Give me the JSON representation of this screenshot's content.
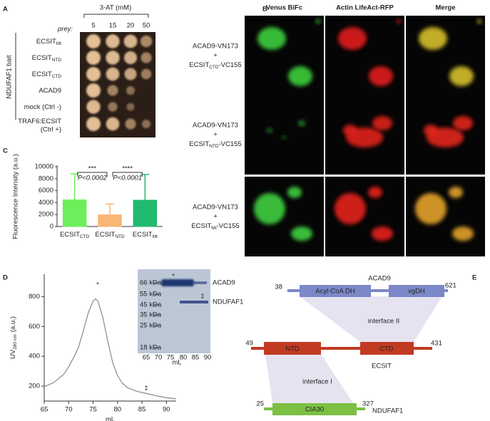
{
  "panel_labels": [
    "A",
    "B",
    "C",
    "D",
    "E"
  ],
  "panel_a": {
    "title": "3-AT (mM)",
    "concentrations": [
      "5",
      "15",
      "20",
      "50"
    ],
    "prey": "prey:",
    "bait": "NDUFAF1 bait",
    "rows": [
      {
        "name": "ECSIT",
        "sub": "Mt"
      },
      {
        "name": "ECSIT",
        "sub": "NTD"
      },
      {
        "name": "ECSIT",
        "sub": "CTD"
      },
      {
        "name": "ACAD9"
      },
      {
        "name": "mock (Ctrl -)"
      },
      {
        "name": "TRAF6:ECSIT",
        "line2": "(Ctrl +)"
      }
    ]
  },
  "panel_b": {
    "columns": [
      "Venus BiFc",
      "Actin LifeAct-RFP",
      "Merge"
    ],
    "rows": [
      {
        "line1": "ACAD9-VN173",
        "line2": "+",
        "name": "ECSIT",
        "sub": "CTD",
        "suffix": "-VC155"
      },
      {
        "line1": "ACAD9-VN173",
        "line2": "+",
        "name": "ECSIT",
        "sub": "NTD",
        "suffix": "-VC155"
      },
      {
        "line1": "ACAD9-VN173",
        "line2": "+",
        "name": "ECSIT",
        "sub": "Mt",
        "suffix": "-VC155"
      }
    ]
  },
  "chart_data": [
    {
      "type": "bar",
      "ylabel": "Fluorescence Intensity (a.u.)",
      "categories": [
        "ECSIT",
        "ECSIT",
        "ECSIT"
      ],
      "category_subscripts": [
        "CTD",
        "NTD",
        "Mt"
      ],
      "values": [
        4450,
        1950,
        4400
      ],
      "errors": [
        4350,
        1800,
        4300
      ],
      "colors": [
        "#6cef5a",
        "#f9b676",
        "#20b96f"
      ],
      "ylim": [
        0,
        10000
      ],
      "yticks": [
        0,
        2000,
        4000,
        6000,
        8000,
        10000
      ],
      "annotations": [
        {
          "stars": "***",
          "p": "P<0.0002"
        },
        {
          "stars": "****",
          "p": "P<0.0001"
        }
      ]
    },
    {
      "type": "line",
      "ylabel": {
        "text": "UV",
        "sub": "280 nm",
        "suffix": "(a.u.)"
      },
      "xlabel": "mL",
      "color": "#8a8a8a",
      "x": [
        65,
        67,
        69,
        70,
        71,
        72,
        73,
        74,
        75,
        75.5,
        76,
        77,
        78,
        79,
        80,
        81,
        82,
        84,
        86,
        88,
        90,
        92
      ],
      "values": [
        195,
        225,
        280,
        330,
        390,
        460,
        570,
        690,
        770,
        785,
        770,
        660,
        500,
        360,
        270,
        220,
        190,
        165,
        150,
        135,
        122,
        115
      ],
      "xlim": [
        65,
        92
      ],
      "ylim": [
        100,
        950
      ],
      "xticks": [
        65,
        70,
        75,
        80,
        85,
        90
      ],
      "yticks": [
        200,
        400,
        600,
        800
      ],
      "annotations": [
        "*",
        "‡"
      ]
    }
  ],
  "gel": {
    "markers": [
      "66 kDa",
      "55 kDa",
      "45 kDa",
      "35 kDa",
      "25 kDa",
      "18 kDa"
    ],
    "bands": [
      "ACAD9",
      "NDUFAF1"
    ],
    "marks": [
      "*",
      "‡"
    ],
    "ticks": [
      "65",
      "70",
      "75",
      "80",
      "85",
      "90"
    ],
    "xlabel": "mL"
  },
  "panel_e": {
    "acad9": {
      "name": "ACAD9",
      "start": "38",
      "end": "621",
      "domains": [
        "Acyl-CoA DH",
        "vgDH"
      ]
    },
    "interface2": "interface II",
    "ecsit": {
      "name": "ECSIT",
      "start": "49",
      "end": "431",
      "domains": [
        "NTD",
        "CTD"
      ]
    },
    "interface1": "interface I",
    "ndufaf1": {
      "name": "NDUFAF1",
      "start": "25",
      "end": "327",
      "domains": [
        "CIA30"
      ]
    }
  }
}
